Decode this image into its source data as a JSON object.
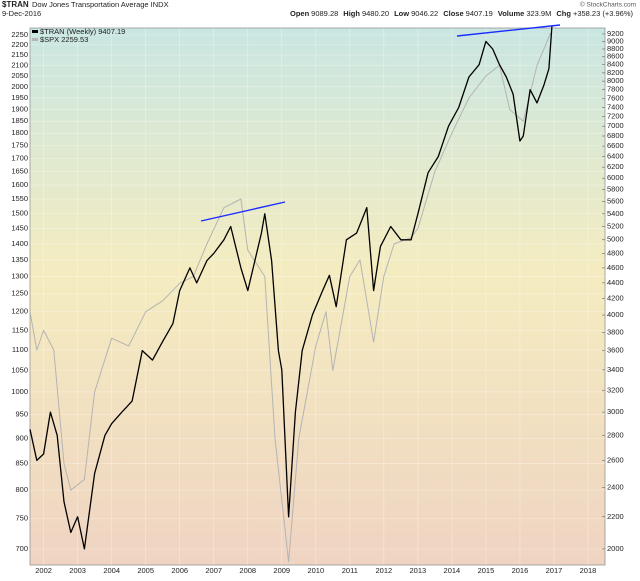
{
  "chart_data": {
    "type": "line",
    "symbol": "$TRAN",
    "title": "Dow Jones Transportation Average INDX",
    "date": "9-Dec-2016",
    "stats": [
      {
        "label": "Open",
        "value": "9089.28"
      },
      {
        "label": "High",
        "value": "9480.20"
      },
      {
        "label": "Low",
        "value": "9046.22"
      },
      {
        "label": "Close",
        "value": "9407.19"
      },
      {
        "label": "Volume",
        "value": "323.9M"
      },
      {
        "label": "Chg",
        "value": "+358.23 (+3.96%)"
      }
    ],
    "watermark": "© StockCharts.com",
    "log_scale": true,
    "grid": true,
    "legend": "top-left",
    "xlim": [
      2001.6,
      2018.5
    ],
    "xticks": [
      2002,
      2003,
      2004,
      2005,
      2006,
      2007,
      2008,
      2009,
      2010,
      2011,
      2012,
      2013,
      2014,
      2015,
      2016,
      2017,
      2018
    ],
    "ylim": [
      675,
      2286
    ],
    "yticks": [
      700,
      750,
      800,
      850,
      900,
      950,
      1000,
      1050,
      1100,
      1150,
      1200,
      1250,
      1300,
      1350,
      1400,
      1450,
      1500,
      1550,
      1600,
      1650,
      1700,
      1750,
      1800,
      1850,
      1900,
      1950,
      2000,
      2050,
      2100,
      2150,
      2200,
      2250
    ],
    "y2lim": [
      1907,
      9365
    ],
    "y2ticks": [
      2000,
      2200,
      2400,
      2600,
      2800,
      3000,
      3200,
      3400,
      3600,
      3800,
      4000,
      4200,
      4400,
      4600,
      4800,
      5000,
      5200,
      5400,
      5600,
      5800,
      6000,
      6200,
      6400,
      6600,
      6800,
      7000,
      7200,
      7400,
      7600,
      7800,
      8000,
      8200,
      8400,
      8600,
      8800,
      9000,
      9200
    ],
    "series": [
      {
        "name": "$SPX 2259.53",
        "color": "#b4b4b4",
        "axis": "y",
        "x": [
          2001.6,
          2001.8,
          2002.0,
          2002.3,
          2002.6,
          2002.8,
          2003.2,
          2003.5,
          2004.0,
          2004.5,
          2005.0,
          2005.5,
          2006.0,
          2006.4,
          2006.8,
          2007.3,
          2007.8,
          2008.0,
          2008.5,
          2008.8,
          2009.2,
          2009.5,
          2010.0,
          2010.3,
          2010.5,
          2011.0,
          2011.3,
          2011.7,
          2012.0,
          2012.3,
          2012.8,
          2013.0,
          2013.5,
          2014.0,
          2014.5,
          2015.0,
          2015.4,
          2015.7,
          2016.1,
          2016.5,
          2016.9
        ],
        "values": [
          1200,
          1100,
          1150,
          1100,
          850,
          800,
          820,
          1000,
          1130,
          1110,
          1200,
          1230,
          1280,
          1300,
          1400,
          1520,
          1550,
          1380,
          1300,
          900,
          680,
          900,
          1110,
          1200,
          1050,
          1300,
          1350,
          1120,
          1300,
          1400,
          1420,
          1450,
          1650,
          1800,
          1950,
          2050,
          2100,
          1900,
          1850,
          2100,
          2260
        ]
      },
      {
        "name": "$TRAN (Weekly) 9407.19",
        "color": "#000000",
        "axis": "y2",
        "x": [
          2001.6,
          2001.8,
          2002.0,
          2002.2,
          2002.4,
          2002.6,
          2002.8,
          2003.0,
          2003.2,
          2003.5,
          2003.8,
          2004.0,
          2004.3,
          2004.6,
          2004.9,
          2005.2,
          2005.5,
          2005.8,
          2006.0,
          2006.3,
          2006.5,
          2006.8,
          2007.0,
          2007.3,
          2007.5,
          2007.8,
          2008.0,
          2008.4,
          2008.5,
          2008.7,
          2008.9,
          2009.0,
          2009.2,
          2009.4,
          2009.6,
          2009.9,
          2010.2,
          2010.4,
          2010.6,
          2010.9,
          2011.2,
          2011.5,
          2011.7,
          2011.9,
          2012.2,
          2012.5,
          2012.8,
          2013.0,
          2013.3,
          2013.6,
          2013.9,
          2014.2,
          2014.5,
          2014.8,
          2015.0,
          2015.2,
          2015.4,
          2015.6,
          2015.8,
          2016.0,
          2016.1,
          2016.3,
          2016.5,
          2016.7,
          2016.85,
          2016.94
        ],
        "values": [
          2850,
          2600,
          2650,
          3000,
          2800,
          2300,
          2100,
          2200,
          2000,
          2500,
          2800,
          2900,
          3000,
          3100,
          3600,
          3500,
          3700,
          3900,
          4300,
          4600,
          4400,
          4700,
          4800,
          5000,
          5200,
          4600,
          4300,
          5100,
          5400,
          4700,
          3600,
          3400,
          2200,
          3000,
          3600,
          4000,
          4300,
          4500,
          4100,
          5000,
          5100,
          5500,
          4300,
          4900,
          5200,
          5000,
          5000,
          5400,
          6100,
          6400,
          7000,
          7400,
          8100,
          8400,
          9000,
          8800,
          8400,
          8100,
          7700,
          6700,
          6800,
          7800,
          7500,
          7900,
          8300,
          9407
        ]
      }
    ]
  }
}
